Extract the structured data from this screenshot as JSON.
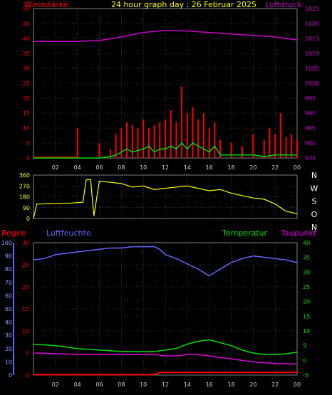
{
  "header": {
    "title": "24 hour graph day : 26 Februar 2025",
    "left_label": "Windstärke",
    "right_label": "Luftdruck"
  },
  "colors": {
    "background": "#000000",
    "grid": "#5a5a5a",
    "wind": "#ff0000",
    "wind_avg": "#00dd00",
    "pressure": "#cc00cc",
    "direction": "#ffff00",
    "humidity": "#6666ff",
    "temperature": "#00dd00",
    "dewpoint": "#dd00dd",
    "rain": "#ff0000",
    "title": "#ffff00"
  },
  "panel_labels": {
    "regen": "Regen",
    "luftfeuchte": "Luftfeuchte",
    "temperatur": "Temperatur",
    "taupunkt": "Taupunkt"
  },
  "chart_data": [
    {
      "type": "line",
      "xlabel": "",
      "ylabel": "Windstärke",
      "y2label": "Luftdruck",
      "x_ticks": [
        "02",
        "04",
        "06",
        "08",
        "10",
        "12",
        "14",
        "16",
        "18",
        "20",
        "22",
        "00"
      ],
      "y_ticks": [
        0,
        5,
        10,
        15,
        20,
        25,
        30,
        35,
        40,
        45,
        50
      ],
      "ylim": [
        0,
        50
      ],
      "y2_ticks": [
        975,
        980,
        985,
        990,
        995,
        1000,
        1005,
        1010,
        1015,
        1020,
        1025
      ],
      "y2lim": [
        975,
        1025
      ],
      "grid": true,
      "series": [
        {
          "key": "pressure",
          "x": [
            0,
            2,
            4,
            6,
            8,
            10,
            12,
            14,
            16,
            18,
            20,
            22,
            24
          ],
          "values": [
            1014.0,
            1014.0,
            1014.0,
            1014.3,
            1015.5,
            1017.0,
            1017.7,
            1017.5,
            1017.0,
            1016.5,
            1016.0,
            1015.5,
            1014.5
          ]
        },
        {
          "key": "wind_max",
          "x": [
            0,
            3.5,
            4.0,
            5,
            6,
            7,
            7.5,
            8,
            8.5,
            9,
            9.5,
            10,
            10.5,
            11,
            11.5,
            12,
            12.5,
            13,
            13.5,
            14,
            14.5,
            15,
            15.5,
            16,
            16.5,
            17,
            18,
            19,
            20,
            21,
            21.5,
            22,
            22.5,
            23,
            23.5,
            24
          ],
          "values": [
            0,
            0,
            10,
            0,
            5,
            3,
            8,
            10,
            12,
            11,
            10,
            13,
            10,
            11,
            12,
            13,
            16,
            12,
            24,
            15,
            17,
            13,
            15,
            10,
            12,
            6,
            5,
            4,
            8,
            6,
            10,
            8,
            15,
            7,
            8,
            6
          ]
        },
        {
          "key": "wind_avg",
          "x": [
            0,
            6,
            7,
            7.5,
            8,
            8.5,
            9,
            10,
            10.5,
            11,
            11.5,
            12,
            12.5,
            13,
            13.5,
            14,
            14.5,
            15,
            15.5,
            16,
            16.5,
            17,
            18,
            19,
            20,
            21,
            22,
            23,
            24
          ],
          "values": [
            0,
            0,
            0.5,
            1,
            2,
            3,
            2,
            3,
            4,
            2,
            3,
            3,
            4,
            3,
            5,
            3,
            5,
            4,
            3,
            2,
            4,
            1,
            1,
            1,
            1,
            0.5,
            1,
            1,
            1
          ]
        }
      ]
    },
    {
      "type": "scatter",
      "ylabel": "",
      "y_ticks": [
        0,
        90,
        180,
        270,
        360
      ],
      "ylim": [
        0,
        360
      ],
      "right_labels": [
        "N",
        "W",
        "S",
        "O",
        "N"
      ],
      "grid": true,
      "series": [
        {
          "key": "direction",
          "x": [
            0,
            0.3,
            0.6,
            2,
            3.5,
            4.5,
            4.8,
            5.2,
            5.5,
            6,
            7,
            8,
            9,
            10,
            11,
            12,
            13,
            14,
            15,
            16,
            17,
            18,
            19,
            20,
            21,
            22,
            23,
            24
          ],
          "values": [
            0,
            120,
            120,
            125,
            128,
            135,
            320,
            325,
            20,
            310,
            300,
            290,
            260,
            270,
            240,
            250,
            260,
            270,
            250,
            230,
            240,
            210,
            190,
            170,
            160,
            120,
            60,
            40
          ]
        }
      ]
    },
    {
      "type": "line",
      "ylabel": "Regen",
      "y_ticks": [
        0,
        5,
        10,
        15,
        20,
        25,
        30
      ],
      "ylim": [
        0,
        30
      ],
      "y_hum_ticks": [
        0,
        10,
        20,
        30,
        40,
        50,
        60,
        70,
        80,
        90,
        100
      ],
      "y_hum_lim": [
        0,
        100
      ],
      "y2_ticks": [
        -5,
        0,
        5,
        10,
        15,
        20,
        25,
        30,
        35,
        40
      ],
      "y2lim": [
        -5,
        40
      ],
      "x_ticks": [
        "02",
        "04",
        "06",
        "08",
        "10",
        "12",
        "14",
        "16",
        "18",
        "20",
        "22",
        "00"
      ],
      "grid": true,
      "series": [
        {
          "key": "humidity",
          "x": [
            0,
            1,
            2,
            3,
            4,
            5,
            6,
            7,
            8,
            9,
            10,
            11,
            11.5,
            12,
            13,
            14,
            15,
            16,
            17,
            18,
            19,
            20,
            21,
            22,
            23,
            24
          ],
          "values": [
            87,
            88,
            91,
            92,
            93,
            94,
            95,
            96,
            96,
            97,
            97,
            97,
            95,
            91,
            88,
            84,
            80,
            75,
            80,
            85,
            88,
            90,
            89,
            88,
            87,
            85
          ]
        },
        {
          "key": "temperature",
          "x": [
            0,
            2,
            4,
            6,
            8,
            10,
            11,
            12,
            13,
            14,
            15,
            16,
            17,
            18,
            19,
            20,
            21,
            22,
            23,
            24
          ],
          "values": [
            5.5,
            5,
            4,
            3.5,
            3,
            3,
            3,
            3.5,
            4,
            5.5,
            6.5,
            7,
            6,
            5,
            3.5,
            2.5,
            2.0,
            2.0,
            2.2,
            2.8
          ]
        },
        {
          "key": "dewpoint",
          "x": [
            0,
            2,
            4,
            6,
            8,
            10,
            11,
            12,
            13,
            14,
            15,
            16,
            17,
            18,
            19,
            20,
            21,
            22,
            23,
            24
          ],
          "values": [
            2.5,
            2.3,
            2,
            2,
            2,
            2,
            2,
            1.5,
            1.5,
            2,
            2,
            1.5,
            1,
            0.5,
            0,
            -0.5,
            -0.8,
            -1,
            -1.2,
            -1.2
          ]
        },
        {
          "key": "rain",
          "x": [
            0,
            11,
            11.5,
            24
          ],
          "values": [
            0.1,
            0.1,
            0.6,
            0.6
          ]
        }
      ]
    }
  ]
}
